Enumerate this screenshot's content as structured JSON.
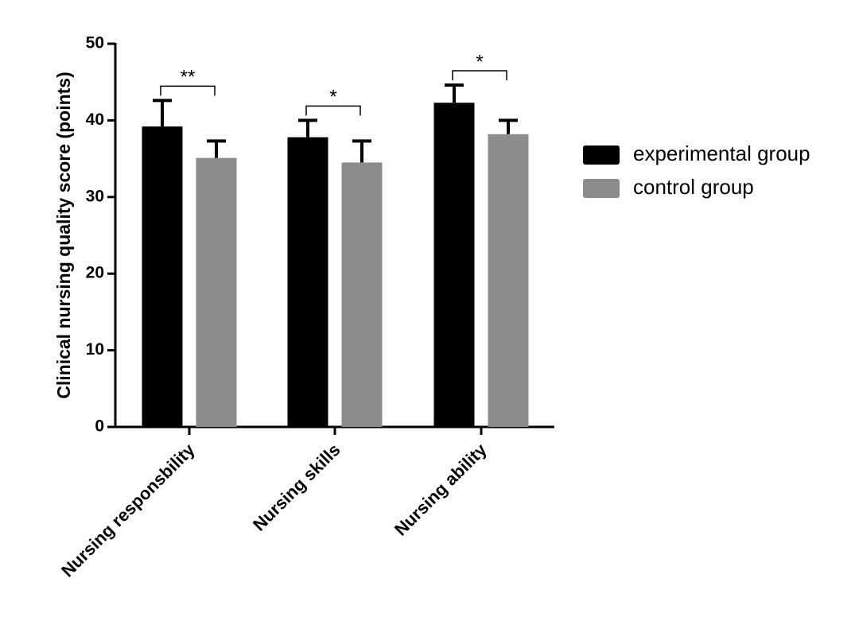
{
  "chart_data": {
    "type": "bar",
    "y_label": "Clinical nursing quality score (points)",
    "categories": [
      "Nursing responsbility",
      "Nursing skills",
      "Nursing ability"
    ],
    "series": [
      {
        "name": "experimental group",
        "color": "#000000",
        "values": [
          39.2,
          37.8,
          42.3
        ],
        "errors": [
          3.4,
          2.2,
          2.3
        ]
      },
      {
        "name": "control group",
        "color": "#8c8c8c",
        "values": [
          35.1,
          34.5,
          38.2
        ],
        "errors": [
          2.2,
          2.8,
          1.8
        ]
      }
    ],
    "significance": [
      "**",
      "*",
      "*"
    ],
    "ylim": [
      0,
      50
    ],
    "yticks": [
      0,
      10,
      20,
      30,
      40,
      50
    ],
    "legend": "right"
  }
}
